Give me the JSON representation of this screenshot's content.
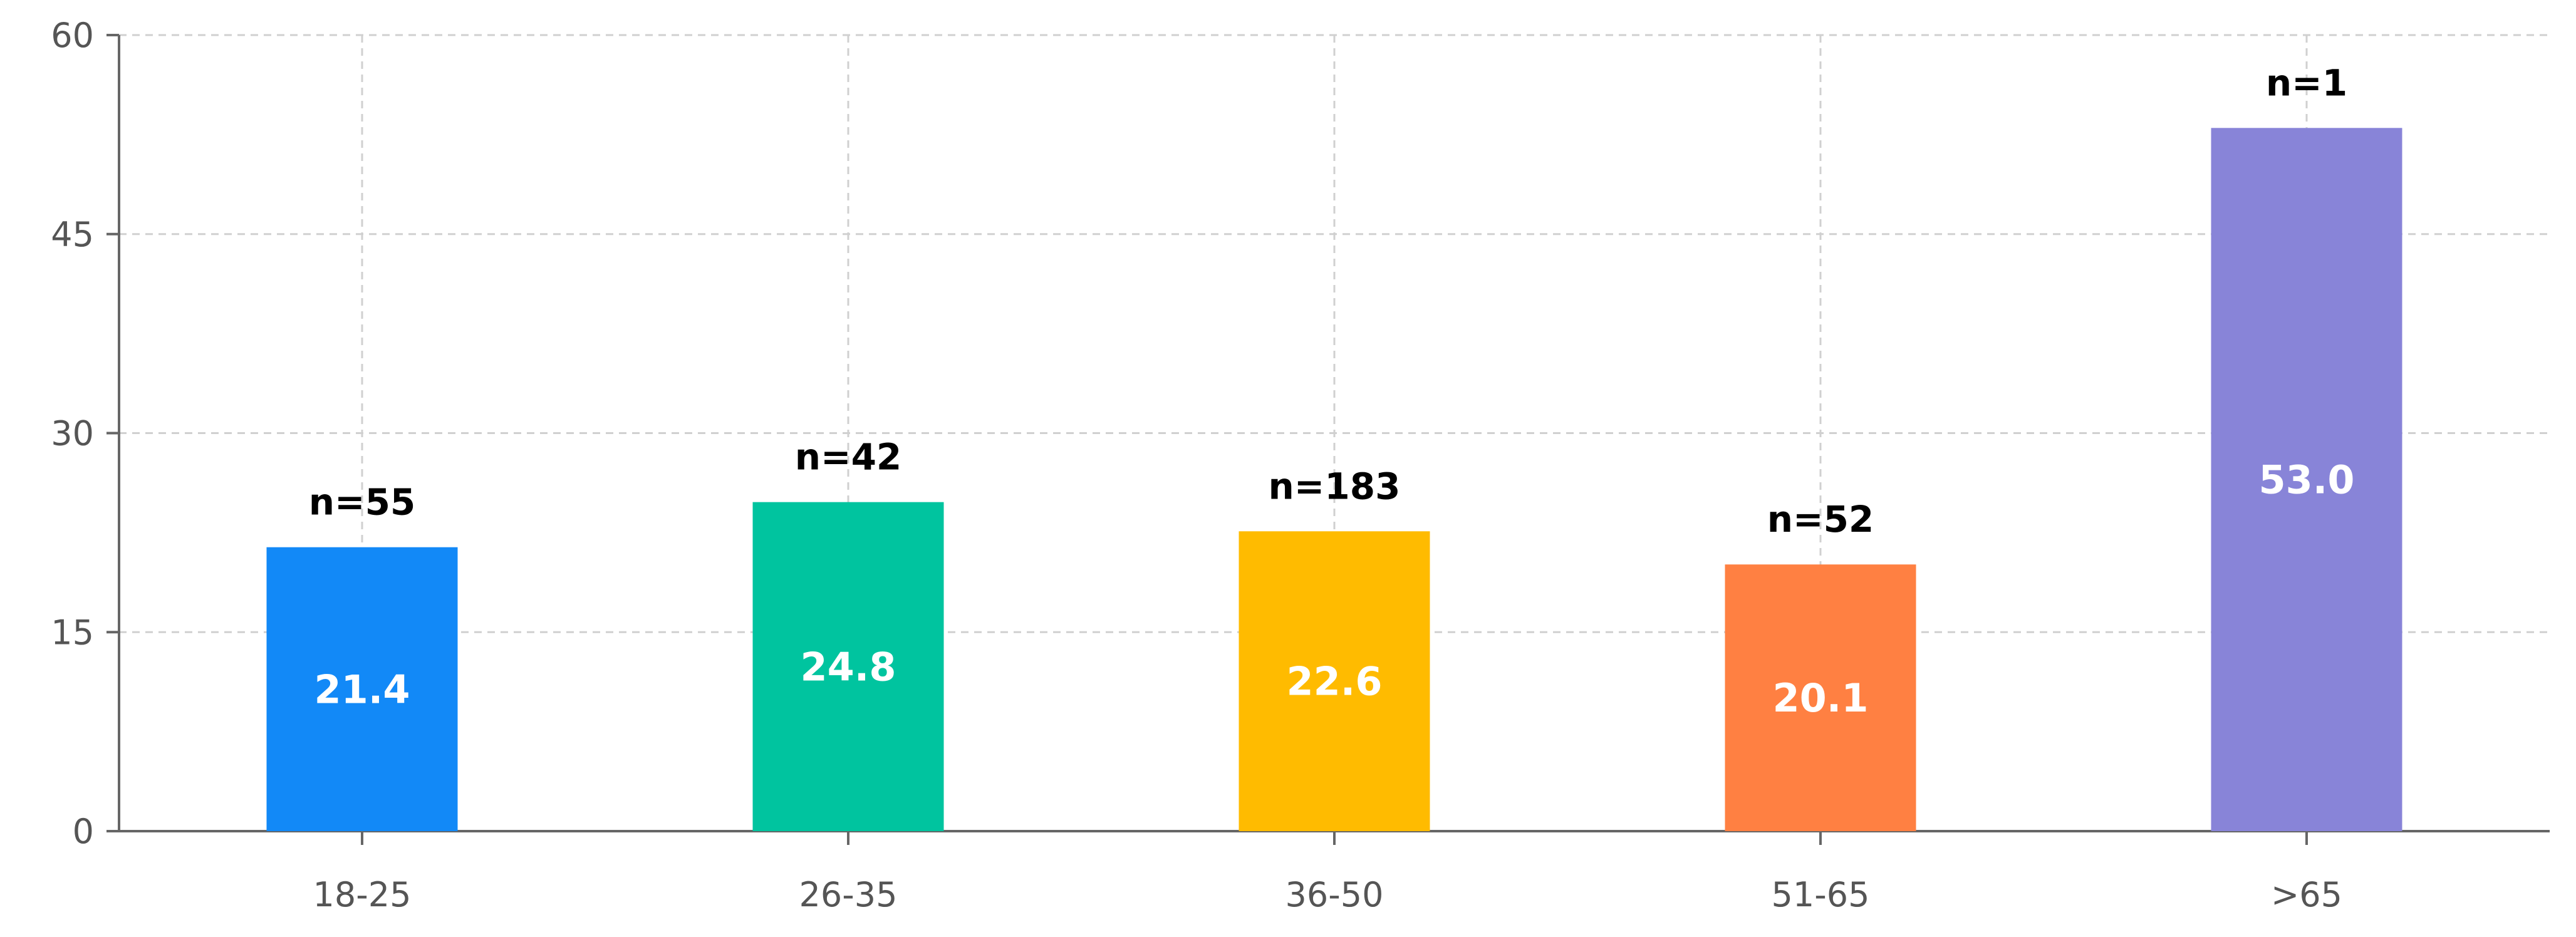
{
  "chart_data": {
    "type": "bar",
    "title": "",
    "xlabel": "",
    "ylabel": "",
    "categories": [
      "18-25",
      "26-35",
      "36-50",
      "51-65",
      ">65"
    ],
    "values": [
      21.4,
      24.8,
      22.6,
      20.1,
      53.0
    ],
    "value_labels": [
      "21.4",
      "24.8",
      "22.6",
      "20.1",
      "53.0"
    ],
    "n_labels": [
      "n=55",
      "n=42",
      "n=183",
      "n=52",
      "n=1"
    ],
    "colors": [
      "#1289f7",
      "#00c49f",
      "#ffbb00",
      "#ff8042",
      "#8884d8"
    ],
    "ylim": [
      0,
      60
    ],
    "yticks": [
      0,
      15,
      30,
      45,
      60
    ],
    "ytick_labels": [
      "0",
      "15",
      "30",
      "45",
      "60"
    ],
    "grid": true,
    "grid_style": "dashed",
    "legend": "none"
  }
}
